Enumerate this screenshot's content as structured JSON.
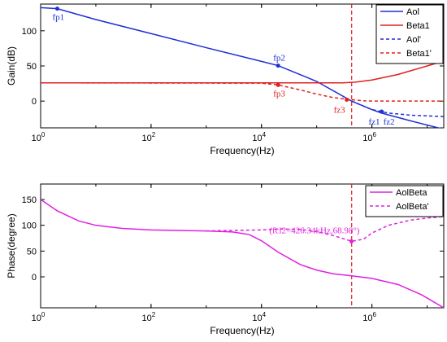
{
  "chart_data": [
    {
      "type": "line",
      "xscale": "log",
      "xlim": [
        1,
        20000000
      ],
      "ylim": [
        -38,
        138
      ],
      "xticks": [
        1,
        100,
        10000,
        1000000
      ],
      "xtick_labels": [
        {
          "base": "10",
          "exp": "0"
        },
        {
          "base": "10",
          "exp": "2"
        },
        {
          "base": "10",
          "exp": "4"
        },
        {
          "base": "10",
          "exp": "6"
        }
      ],
      "yticks": [
        0,
        50,
        100
      ],
      "ytick_labels": [
        "0",
        "50",
        "100"
      ],
      "xlabel": "Frequency(Hz)",
      "ylabel": "Gain(dB)",
      "grid": false,
      "legend": "top-right",
      "vline_x": 430000,
      "vline_color": "#e02020",
      "series": [
        {
          "name": "Aol",
          "color": "#1f2fd6",
          "dash": "solid",
          "x": [
            1,
            2,
            10,
            100,
            1000,
            10000,
            20000,
            100000,
            430000,
            1000000,
            1500000,
            5000000,
            20000000
          ],
          "y": [
            133,
            131.5,
            116,
            96,
            76,
            56.5,
            50.5,
            28,
            0,
            -12,
            -17,
            -28,
            -40
          ]
        },
        {
          "name": "Beta1",
          "color": "#e02020",
          "dash": "solid",
          "x": [
            1,
            10,
            100,
            1000,
            10000,
            100000,
            300000,
            500000,
            1000000,
            3000000,
            10000000,
            20000000
          ],
          "y": [
            26,
            26,
            26,
            26,
            26,
            26,
            26,
            27,
            30,
            38,
            50,
            57
          ]
        },
        {
          "name": "Aol'",
          "color": "#1f2fd6",
          "dash": "dashed",
          "x": [
            430000,
            700000,
            1000000,
            1500000,
            2000000,
            5000000,
            20000000
          ],
          "y": [
            0,
            -7,
            -12,
            -15,
            -17,
            -20,
            -22
          ]
        },
        {
          "name": "Beta1'",
          "color": "#e02020",
          "dash": "dashed",
          "x": [
            1,
            10000,
            20000,
            50000,
            100000,
            200000,
            430000,
            700000,
            1000000,
            20000000
          ],
          "y": [
            26,
            25.5,
            23,
            16,
            10,
            5,
            2,
            0.5,
            0,
            0
          ]
        }
      ],
      "markers": [
        {
          "label": "fp1",
          "x": 2,
          "y": 131.5,
          "color": "#1f2fd6",
          "label_pos": "below"
        },
        {
          "label": "fp2",
          "x": 20000,
          "y": 50.5,
          "color": "#1f2fd6",
          "label_pos": "above"
        },
        {
          "label": "fp3",
          "x": 20000,
          "y": 23,
          "color": "#e02020",
          "label_pos": "below"
        },
        {
          "label": "fz3",
          "x": 350000,
          "y": 2,
          "color": "#e02020",
          "label_pos": "below-left"
        },
        {
          "label": "fz1",
          "x": 1500000,
          "y": -15,
          "color": "#1f2fd6",
          "label_pos": "below-left"
        },
        {
          "label": "fz2",
          "x": 1500000,
          "y": -15,
          "color": "#1f2fd6",
          "label_pos": "below-right"
        }
      ]
    },
    {
      "type": "line",
      "xscale": "log",
      "xlim": [
        1,
        20000000
      ],
      "ylim": [
        -60,
        180
      ],
      "xticks": [
        1,
        100,
        10000,
        1000000
      ],
      "xtick_labels": [
        {
          "base": "10",
          "exp": "0"
        },
        {
          "base": "10",
          "exp": "2"
        },
        {
          "base": "10",
          "exp": "4"
        },
        {
          "base": "10",
          "exp": "6"
        }
      ],
      "yticks": [
        0,
        50,
        100,
        150
      ],
      "ytick_labels": [
        "0",
        "50",
        "100",
        "150"
      ],
      "xlabel": "Frequency(Hz)",
      "ylabel": "Phase(degree)",
      "grid": false,
      "legend": "top-right",
      "vline_x": 430000,
      "vline_color": "#e02020",
      "series": [
        {
          "name": "AolBeta",
          "color": "#e020e0",
          "dash": "solid",
          "x": [
            1,
            2,
            5,
            10,
            30,
            100,
            300,
            1000,
            3000,
            6000,
            10000,
            20000,
            50000,
            100000,
            200000,
            430000,
            1000000,
            3000000,
            8000000,
            20000000
          ],
          "y": [
            150,
            128,
            108,
            100,
            94,
            91,
            90,
            89,
            87,
            82,
            70,
            48,
            24,
            13,
            6,
            2,
            -3,
            -15,
            -35,
            -60
          ]
        },
        {
          "name": "AolBeta'",
          "color": "#e020e0",
          "dash": "dashed",
          "x": [
            1000,
            3000,
            10000,
            20000,
            50000,
            100000,
            200000,
            430000,
            700000,
            1000000,
            2000000,
            5000000,
            10000000,
            20000000
          ],
          "y": [
            89,
            90,
            91,
            93,
            92,
            88,
            80,
            69,
            73,
            85,
            100,
            110,
            114,
            117
          ]
        }
      ],
      "markers": [
        {
          "label": "(fcl2=426.34kHz,68.98°)",
          "x": 426340,
          "y": 68.98,
          "color": "#e020e0",
          "label_pos": "above-left"
        }
      ]
    }
  ]
}
